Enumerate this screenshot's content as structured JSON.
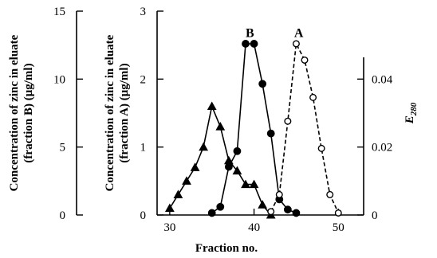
{
  "chart_data": {
    "type": "line",
    "xlabel": "Fraction no.",
    "x_ticks": [
      30,
      40,
      50
    ],
    "xlim": [
      28.5,
      53
    ],
    "axes": {
      "zinc_B": {
        "label_line1": "Concentration of zinc in eluate",
        "label_line2": "(fraction B) (μg/ml)",
        "ticks": [
          "0",
          "5",
          "10",
          "15"
        ],
        "ylim": [
          0,
          15
        ]
      },
      "zinc_A": {
        "label_line1": "Concentration of zinc in eluate",
        "label_line2": "(fraction A) (μg/ml)",
        "ticks": [
          "0",
          "1",
          "2",
          "3"
        ],
        "ylim": [
          0,
          3
        ]
      },
      "e280": {
        "label": "E",
        "label_sub": "280",
        "ticks": [
          "0",
          "0.02",
          "0.04"
        ],
        "ylim": [
          0,
          0.06
        ]
      }
    },
    "annotations": [
      {
        "text": "B",
        "x": 39.5,
        "y_axis": "zinc_A",
        "y": 2.62
      },
      {
        "text": "A",
        "x": 45.3,
        "y_axis": "zinc_A",
        "y": 2.62
      }
    ],
    "series": [
      {
        "marker": "triangle",
        "y_axis": "e280",
        "line": "solid",
        "points": [
          [
            30,
            0.002
          ],
          [
            31,
            0.006
          ],
          [
            32,
            0.01
          ],
          [
            33,
            0.014
          ],
          [
            34,
            0.02
          ],
          [
            35,
            0.032
          ],
          [
            36,
            0.026
          ],
          [
            37,
            0.016
          ],
          [
            38,
            0.013
          ],
          [
            39,
            0.009
          ],
          [
            40,
            0.009
          ],
          [
            41,
            0.003
          ],
          [
            42,
            0.0
          ]
        ]
      },
      {
        "marker": "filled-circle",
        "y_axis": "zinc_A",
        "line": "solid",
        "points": [
          [
            35,
            0.03
          ],
          [
            36,
            0.12
          ],
          [
            37,
            0.71
          ],
          [
            38,
            0.94
          ],
          [
            39,
            2.52
          ],
          [
            40,
            2.52
          ],
          [
            41,
            1.93
          ],
          [
            42,
            1.2
          ],
          [
            43,
            0.23
          ],
          [
            44,
            0.08
          ],
          [
            45,
            0.03
          ]
        ]
      },
      {
        "marker": "open-circle",
        "y_axis": "zinc_A",
        "line": "dashed",
        "points": [
          [
            42,
            0.05
          ],
          [
            43,
            0.3
          ],
          [
            44,
            1.38
          ],
          [
            45,
            2.52
          ],
          [
            46,
            2.28
          ],
          [
            47,
            1.73
          ],
          [
            48,
            0.98
          ],
          [
            49,
            0.3
          ],
          [
            50,
            0.03
          ]
        ]
      }
    ]
  }
}
